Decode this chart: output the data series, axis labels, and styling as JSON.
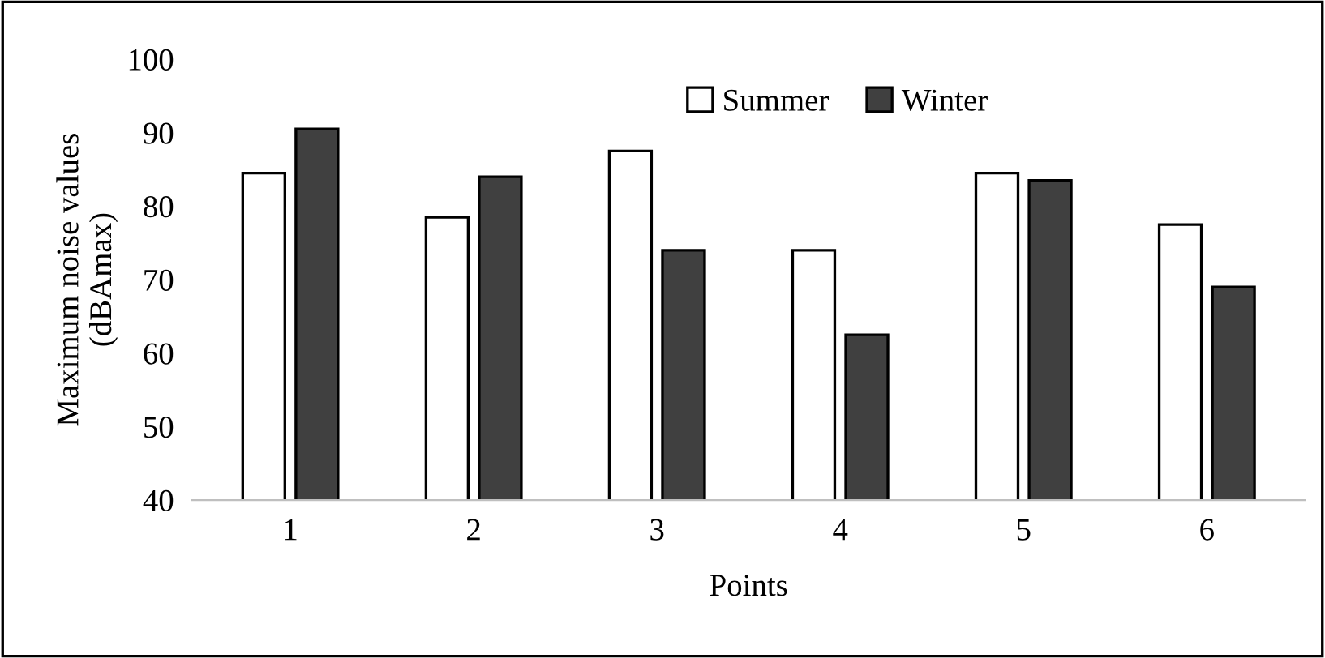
{
  "chart_data": {
    "type": "bar",
    "xlabel": "Points",
    "ylabel": "Maximum noise values\n(dBAmax)",
    "categories": [
      "1",
      "2",
      "3",
      "4",
      "5",
      "6"
    ],
    "series": [
      {
        "name": "Summer",
        "color": "#ffffff",
        "values": [
          84.5,
          78.5,
          87.5,
          74,
          84.5,
          77.5
        ]
      },
      {
        "name": "Winter",
        "color": "#404040",
        "values": [
          90.5,
          84,
          74,
          62.5,
          83.5,
          69
        ]
      }
    ],
    "ylim": [
      40,
      100
    ],
    "yticks": [
      40,
      50,
      60,
      70,
      80,
      90,
      100
    ],
    "grid": false,
    "legend": "top"
  }
}
